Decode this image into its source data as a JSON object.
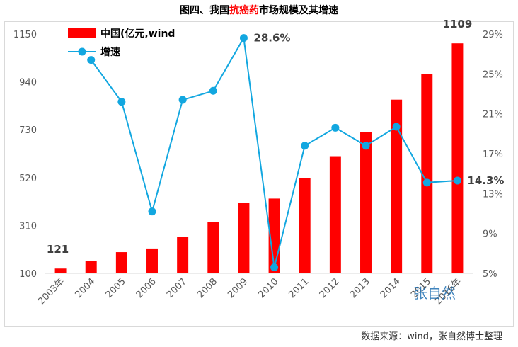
{
  "title": {
    "before": "图四、我国",
    "highlight": "抗癌药",
    "after": "市场规模及其增速"
  },
  "source_note": "数据来源：wind，张自然博士整理",
  "watermark": "张自然",
  "colors": {
    "bar": "#ff0000",
    "line": "#12a7e0",
    "grid": "#d9d9d9",
    "text": "#595959"
  },
  "chart_data": {
    "type": "bar+line",
    "categories": [
      "2003年",
      "2004",
      "2005",
      "2006",
      "2007",
      "2008",
      "2009",
      "2010",
      "2011",
      "2012",
      "2013",
      "2014",
      "2015",
      "2016年"
    ],
    "series": [
      {
        "name": "中国(亿元,wind",
        "type": "bar",
        "axis": "left",
        "values": [
          121,
          153,
          193,
          209,
          259,
          324,
          410,
          428,
          517,
          614,
          720,
          862,
          976,
          1109
        ]
      },
      {
        "name": "增速",
        "type": "line",
        "axis": "right",
        "values": [
          null,
          26.4,
          22.2,
          11.2,
          22.4,
          23.3,
          28.6,
          5.6,
          17.8,
          19.6,
          17.8,
          19.7,
          14.1,
          14.3
        ]
      }
    ],
    "y_left": {
      "ticks": [
        100,
        310,
        520,
        730,
        940,
        1150
      ],
      "range": [
        100,
        1150
      ]
    },
    "y_right": {
      "ticks": [
        "5%",
        "9%",
        "13%",
        "17%",
        "21%",
        "25%",
        "29%"
      ],
      "range": [
        5,
        29
      ]
    },
    "data_labels": [
      {
        "series": 0,
        "index": 0,
        "text": "121"
      },
      {
        "series": 0,
        "index": 13,
        "text": "1109"
      },
      {
        "series": 1,
        "index": 6,
        "text": "28.6%"
      },
      {
        "series": 1,
        "index": 13,
        "text": "14.3%"
      }
    ],
    "legend": "top-left"
  }
}
